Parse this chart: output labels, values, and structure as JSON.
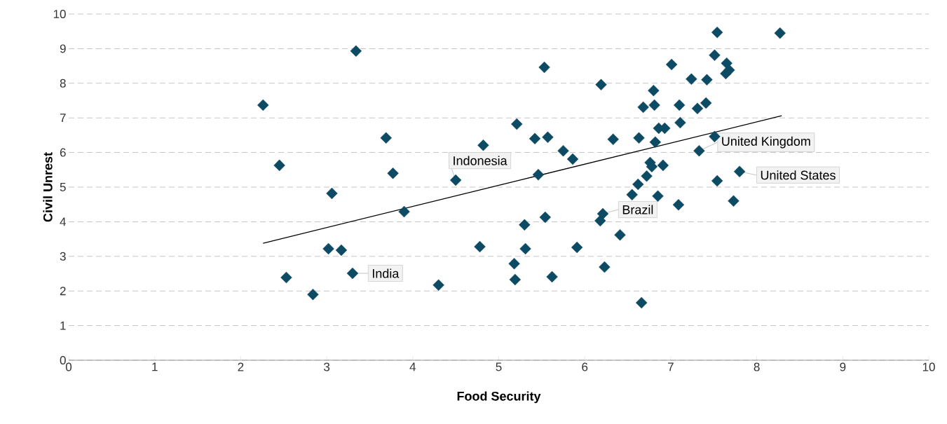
{
  "chart_data": {
    "type": "scatter",
    "xlabel": "Food Security",
    "ylabel": "Civil Unrest",
    "xlim": [
      0,
      10
    ],
    "ylim": [
      0,
      10
    ],
    "xticks": [
      0,
      1,
      2,
      3,
      4,
      5,
      6,
      7,
      8,
      9,
      10
    ],
    "yticks": [
      0,
      1,
      2,
      3,
      4,
      5,
      6,
      7,
      8,
      9,
      10
    ],
    "grid": "y",
    "marker": "diamond",
    "series": [
      {
        "color": "#0d4a63",
        "x": [
          2.26,
          2.45,
          2.53,
          2.84,
          3.02,
          3.06,
          3.17,
          3.3,
          3.34,
          3.69,
          3.77,
          3.9,
          4.3,
          4.5,
          4.82,
          4.78,
          5.18,
          5.19,
          5.21,
          5.3,
          5.31,
          5.42,
          5.46,
          5.53,
          5.54,
          5.57,
          5.62,
          5.75,
          5.86,
          5.91,
          6.18,
          6.19,
          6.21,
          6.23,
          6.33,
          6.41,
          6.55,
          6.62,
          6.63,
          6.66,
          6.68,
          6.72,
          6.76,
          6.78,
          6.8,
          6.81,
          6.82,
          6.85,
          6.86,
          6.91,
          6.93,
          7.01,
          7.09,
          7.1,
          7.11,
          7.24,
          7.31,
          7.33,
          7.41,
          7.42,
          7.51,
          7.51,
          7.54,
          7.54,
          7.64,
          7.65,
          7.68,
          7.73,
          7.8,
          8.27
        ],
        "values": [
          7.37,
          5.63,
          2.39,
          1.9,
          3.22,
          4.82,
          3.18,
          2.51,
          8.93,
          6.42,
          5.4,
          4.29,
          2.17,
          5.2,
          6.21,
          3.28,
          2.79,
          2.33,
          6.82,
          3.91,
          3.22,
          6.4,
          5.36,
          8.46,
          4.13,
          6.44,
          2.41,
          6.05,
          5.81,
          3.26,
          4.03,
          7.96,
          4.23,
          2.69,
          6.38,
          3.62,
          4.78,
          5.08,
          6.42,
          1.66,
          7.31,
          5.32,
          5.71,
          5.59,
          7.79,
          7.37,
          6.3,
          4.74,
          6.7,
          5.63,
          6.7,
          8.54,
          4.49,
          7.37,
          6.86,
          8.12,
          7.27,
          6.05,
          7.43,
          8.1,
          8.81,
          6.46,
          9.47,
          5.18,
          8.28,
          8.58,
          8.38,
          4.6,
          5.45,
          9.45
        ]
      },
      {
        "type": "line",
        "color": "#000000",
        "marker": "none",
        "x": [
          2.26,
          8.29
        ],
        "values": [
          3.38,
          7.06
        ]
      }
    ],
    "annotations": [
      {
        "text": "India",
        "x": 3.3,
        "y": 2.51
      },
      {
        "text": "Indonesia",
        "x": 4.5,
        "y": 5.2
      },
      {
        "text": "Brazil",
        "x": 6.21,
        "y": 4.23
      },
      {
        "text": "United Kingdom",
        "x": 7.33,
        "y": 6.05
      },
      {
        "text": "United States",
        "x": 7.8,
        "y": 5.45
      }
    ]
  }
}
